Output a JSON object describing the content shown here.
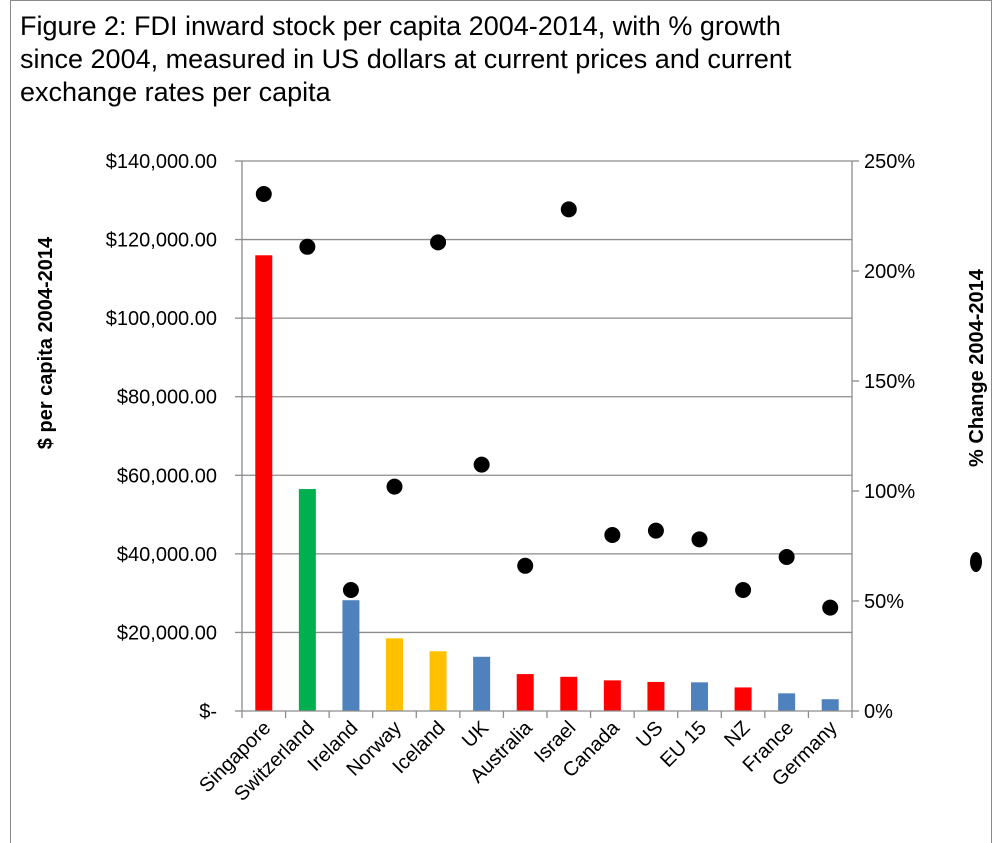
{
  "chart_data": {
    "type": "bar",
    "title": "Figure 2: FDI inward stock per capita 2004-2014, with % growth since 2004, measured in US dollars at current prices and current exchange rates per capita",
    "ylabel": "$ per capita 2004-2014",
    "y2label": "% Change 2004-2014",
    "ylim": [
      0,
      140000
    ],
    "y2lim": [
      0,
      250
    ],
    "yticks": [
      "$-",
      "$20,000.00",
      "$40,000.00",
      "$60,000.00",
      "$80,000.00",
      "$100,000.00",
      "$120,000.00",
      "$140,000.00"
    ],
    "y2ticks": [
      "0%",
      "50%",
      "100%",
      "150%",
      "200%",
      "250%"
    ],
    "grid": true,
    "categories": [
      "Singapore",
      "Switzerland",
      "Ireland",
      "Norway",
      "Iceland",
      "UK",
      "Australia",
      "Israel",
      "Canada",
      "US",
      "EU 15",
      "NZ",
      "France",
      "Germany"
    ],
    "series": [
      {
        "values": [
          116000,
          56500,
          28200,
          18500,
          15200,
          13800,
          9400,
          8700,
          7800,
          7400,
          7300,
          6000,
          4500,
          3000
        ],
        "colors": [
          "#ff0000",
          "#00b050",
          "#4f81bd",
          "#ffc000",
          "#ffc000",
          "#4f81bd",
          "#ff0000",
          "#ff0000",
          "#ff0000",
          "#ff0000",
          "#4f81bd",
          "#ff0000",
          "#4f81bd",
          "#4f81bd"
        ]
      },
      {
        "type": "scatter",
        "axis": "secondary",
        "values": [
          235,
          211,
          55,
          102,
          213,
          112,
          66,
          228,
          80,
          82,
          78,
          55,
          70,
          47
        ],
        "color": "#000000"
      }
    ]
  }
}
